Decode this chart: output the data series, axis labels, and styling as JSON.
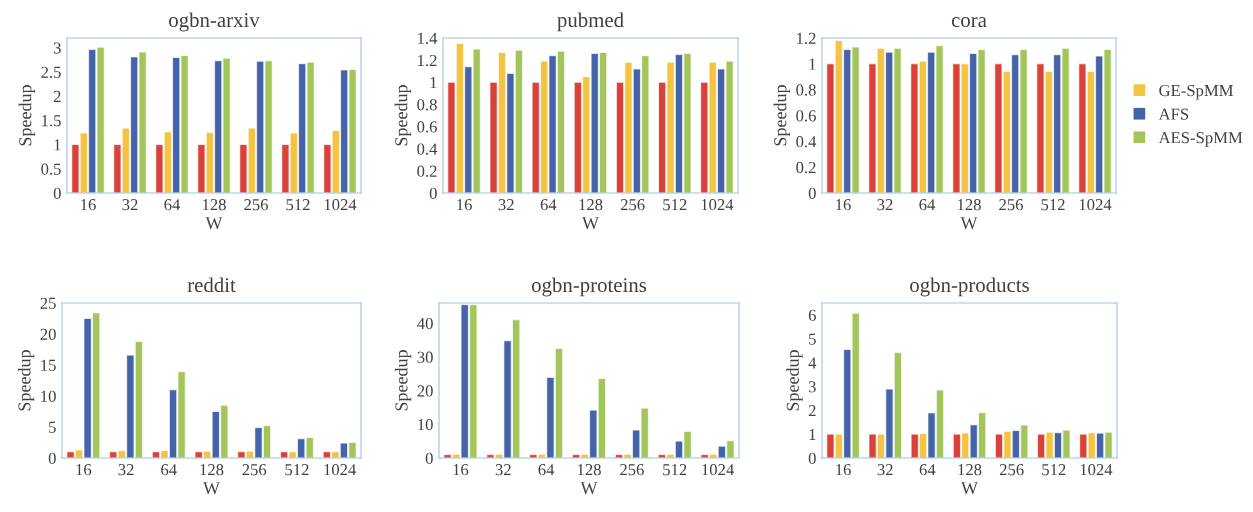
{
  "chart_data": [
    {
      "type": "bar",
      "title": "ogbn-arxiv",
      "xlabel": "W",
      "ylabel": "Speedup",
      "categories": [
        "16",
        "32",
        "64",
        "128",
        "256",
        "512",
        "1024"
      ],
      "ylim": [
        0,
        3.2
      ],
      "yticks": [
        0,
        0.5,
        1,
        1.5,
        2,
        2.5,
        3
      ],
      "grid": false,
      "series": [
        {
          "color": "#d9413a",
          "values": [
            1,
            1,
            1,
            1,
            1,
            1,
            1
          ]
        },
        {
          "color": "#f5c342",
          "values": [
            1.24,
            1.34,
            1.26,
            1.25,
            1.34,
            1.24,
            1.29
          ]
        },
        {
          "color": "#4563a8",
          "values": [
            2.96,
            2.81,
            2.8,
            2.73,
            2.72,
            2.67,
            2.54
          ]
        },
        {
          "color": "#a3c65c",
          "values": [
            3.01,
            2.91,
            2.84,
            2.78,
            2.73,
            2.7,
            2.55
          ]
        }
      ]
    },
    {
      "type": "bar",
      "title": "pubmed",
      "xlabel": "W",
      "ylabel": "Speedup",
      "categories": [
        "16",
        "32",
        "64",
        "128",
        "256",
        "512",
        "1024"
      ],
      "ylim": [
        0,
        1.4
      ],
      "yticks": [
        0,
        0.2,
        0.4,
        0.6,
        0.8,
        1,
        1.2,
        1.4
      ],
      "grid": false,
      "series": [
        {
          "color": "#d9413a",
          "values": [
            1,
            1,
            1,
            1,
            1,
            1,
            1
          ]
        },
        {
          "color": "#f5c342",
          "values": [
            1.35,
            1.27,
            1.19,
            1.05,
            1.18,
            1.18,
            1.18
          ]
        },
        {
          "color": "#4563a8",
          "values": [
            1.14,
            1.08,
            1.24,
            1.26,
            1.12,
            1.25,
            1.12
          ]
        },
        {
          "color": "#a3c65c",
          "values": [
            1.3,
            1.29,
            1.28,
            1.27,
            1.24,
            1.26,
            1.19
          ]
        }
      ]
    },
    {
      "type": "bar",
      "title": "cora",
      "xlabel": "W",
      "ylabel": "Speedup",
      "categories": [
        "16",
        "32",
        "64",
        "128",
        "256",
        "512",
        "1024"
      ],
      "ylim": [
        0,
        1.2
      ],
      "yticks": [
        0,
        0.2,
        0.4,
        0.6,
        0.8,
        1,
        1.2
      ],
      "grid": false,
      "legend": "right",
      "series": [
        {
          "color": "#d9413a",
          "values": [
            1,
            1,
            1,
            1,
            1,
            1,
            1
          ]
        },
        {
          "name": "GE-SpMM",
          "color": "#f5c342",
          "values": [
            1.18,
            1.12,
            1.02,
            1.0,
            0.94,
            0.94,
            0.94
          ]
        },
        {
          "name": "AFS",
          "color": "#4563a8",
          "values": [
            1.11,
            1.09,
            1.09,
            1.08,
            1.07,
            1.07,
            1.06
          ]
        },
        {
          "name": "AES-SpMM",
          "color": "#a3c65c",
          "values": [
            1.13,
            1.12,
            1.14,
            1.11,
            1.11,
            1.12,
            1.11
          ]
        }
      ]
    },
    {
      "type": "bar",
      "title": "reddit",
      "xlabel": "W",
      "ylabel": "Speedup",
      "categories": [
        "16",
        "32",
        "64",
        "128",
        "256",
        "512",
        "1024"
      ],
      "ylim": [
        0,
        25
      ],
      "yticks": [
        0,
        5,
        10,
        15,
        20,
        25
      ],
      "grid": false,
      "series": [
        {
          "color": "#d9413a",
          "values": [
            1,
            1,
            1,
            1,
            1,
            1,
            1
          ]
        },
        {
          "color": "#f5c342",
          "values": [
            1.3,
            1.2,
            1.2,
            1.1,
            1.1,
            1.0,
            1.0
          ]
        },
        {
          "color": "#4563a8",
          "values": [
            22.5,
            16.6,
            11.0,
            7.5,
            4.9,
            3.1,
            2.4
          ]
        },
        {
          "color": "#a3c65c",
          "values": [
            23.4,
            18.8,
            13.9,
            8.5,
            5.2,
            3.3,
            2.5
          ]
        }
      ]
    },
    {
      "type": "bar",
      "title": "ogbn-proteins",
      "xlabel": "W",
      "ylabel": "Speedup",
      "categories": [
        "16",
        "32",
        "64",
        "128",
        "256",
        "512",
        "1024"
      ],
      "ylim": [
        0,
        46
      ],
      "yticks": [
        0,
        10,
        20,
        30,
        40
      ],
      "grid": false,
      "series": [
        {
          "color": "#d9413a",
          "values": [
            1,
            1,
            1,
            1,
            1,
            1,
            1
          ]
        },
        {
          "color": "#f5c342",
          "values": [
            1.1,
            1.1,
            1.1,
            1.1,
            1.1,
            1.1,
            1.1
          ]
        },
        {
          "color": "#4563a8",
          "values": [
            45.5,
            34.8,
            23.9,
            14.2,
            8.3,
            5.0,
            3.5
          ]
        },
        {
          "color": "#a3c65c",
          "values": [
            45.5,
            41.0,
            32.5,
            23.6,
            14.8,
            7.9,
            5.1
          ]
        }
      ]
    },
    {
      "type": "bar",
      "title": "ogbn-products",
      "xlabel": "W",
      "ylabel": "Speedup",
      "categories": [
        "16",
        "32",
        "64",
        "128",
        "256",
        "512",
        "1024"
      ],
      "ylim": [
        0,
        6.5
      ],
      "yticks": [
        0,
        1,
        2,
        3,
        4,
        5,
        6
      ],
      "grid": false,
      "series": [
        {
          "color": "#d9413a",
          "values": [
            1,
            1,
            1,
            1,
            1,
            1,
            1
          ]
        },
        {
          "color": "#f5c342",
          "values": [
            1.0,
            1.0,
            1.02,
            1.05,
            1.12,
            1.08,
            1.06
          ]
        },
        {
          "color": "#4563a8",
          "values": [
            4.55,
            2.89,
            1.89,
            1.39,
            1.15,
            1.06,
            1.04
          ]
        },
        {
          "color": "#a3c65c",
          "values": [
            6.07,
            4.42,
            2.85,
            1.9,
            1.38,
            1.17,
            1.08
          ]
        }
      ]
    }
  ]
}
